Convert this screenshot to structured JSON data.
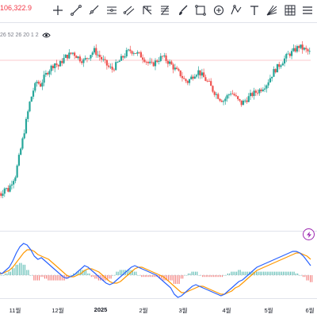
{
  "toolbar": {
    "price_readout": "106,322.9",
    "tools": [
      {
        "icon": "crosshair-icon",
        "glyph": "cross"
      },
      {
        "icon": "trend-line-icon",
        "glyph": "line"
      },
      {
        "icon": "ray-icon",
        "glyph": "ray"
      },
      {
        "icon": "horizontal-lines-icon",
        "glyph": "hlines"
      },
      {
        "icon": "parallel-channel-icon",
        "glyph": "channel"
      },
      {
        "icon": "pitchfork-icon",
        "glyph": "fork"
      },
      {
        "icon": "fib-retracement-icon",
        "glyph": "fib"
      },
      {
        "icon": "brush-icon",
        "glyph": "brush"
      },
      {
        "icon": "rectangle-icon",
        "glyph": "rect"
      },
      {
        "icon": "circle-target-icon",
        "glyph": "circle"
      },
      {
        "icon": "triangle-pattern-icon",
        "glyph": "tri"
      },
      {
        "icon": "text-tool-icon",
        "glyph": "T"
      },
      {
        "icon": "fan-icon",
        "glyph": "fan"
      },
      {
        "icon": "gann-grid-icon",
        "glyph": "grid"
      },
      {
        "icon": "more-tools-icon",
        "glyph": "more"
      }
    ]
  },
  "indicator": {
    "params": "26 52 26 20 1 2"
  },
  "colors": {
    "up": "#26a69a",
    "down": "#ef5350",
    "price_line": "#f23645",
    "macd": "#2962ff",
    "signal": "#ff9800",
    "hist_up": "#26a69a",
    "hist_down": "#ef5350"
  },
  "xaxis": {
    "labels": [
      {
        "text": "11월",
        "bold": false
      },
      {
        "text": "12월",
        "bold": false
      },
      {
        "text": "2025",
        "bold": true
      },
      {
        "text": "2월",
        "bold": false
      },
      {
        "text": "3월",
        "bold": false
      },
      {
        "text": "4월",
        "bold": false
      },
      {
        "text": "5월",
        "bold": false
      },
      {
        "text": "6월",
        "bold": false
      }
    ]
  },
  "chart_data": {
    "type": "candlestick",
    "title": "",
    "last_price": 106322.9,
    "price_series": [
      62,
      60,
      66,
      64,
      72,
      78,
      95,
      112,
      130,
      148,
      160,
      168,
      165,
      172,
      178,
      182,
      186,
      183,
      188,
      192,
      194,
      196,
      193,
      190,
      188,
      191,
      195,
      198,
      194,
      190,
      186,
      182,
      180,
      184,
      188,
      192,
      196,
      198,
      197,
      195,
      193,
      190,
      186,
      184,
      187,
      190,
      192,
      189,
      186,
      182,
      178,
      175,
      170,
      168,
      172,
      176,
      178,
      174,
      170,
      166,
      160,
      156,
      152,
      150,
      154,
      158,
      155,
      150,
      147,
      150,
      153,
      156,
      158,
      160,
      163,
      166,
      172,
      178,
      182,
      186,
      190,
      194,
      196,
      199,
      202,
      200,
      198,
      196
    ],
    "macd": [
      2,
      1,
      3,
      5,
      9,
      14,
      18,
      20,
      19,
      16,
      12,
      10,
      11,
      9,
      7,
      5,
      3,
      1,
      -1,
      -2,
      -1,
      0,
      2,
      4,
      6,
      5,
      3,
      1,
      -1,
      -3,
      -5,
      -6,
      -5,
      -3,
      -1,
      1,
      3,
      5,
      6,
      5,
      4,
      3,
      2,
      1,
      0,
      -2,
      -4,
      -6,
      -8,
      -12,
      -14,
      -13,
      -11,
      -9,
      -7,
      -6,
      -7,
      -8,
      -9,
      -10,
      -11,
      -12,
      -13,
      -12,
      -10,
      -8,
      -6,
      -4,
      -3,
      -1,
      1,
      3,
      5,
      6,
      7,
      8,
      9,
      10,
      11,
      12,
      13,
      14,
      15,
      15,
      14,
      12,
      9,
      6
    ],
    "signal": [
      1,
      1,
      2,
      3,
      5,
      8,
      11,
      14,
      16,
      16,
      15,
      13,
      12,
      11,
      10,
      8,
      6,
      4,
      2,
      0,
      -1,
      -1,
      0,
      1,
      3,
      4,
      4,
      3,
      2,
      0,
      -2,
      -4,
      -5,
      -5,
      -4,
      -2,
      0,
      2,
      4,
      5,
      5,
      4,
      3,
      2,
      1,
      0,
      -1,
      -3,
      -5,
      -7,
      -9,
      -11,
      -11,
      -10,
      -9,
      -8,
      -7,
      -7,
      -8,
      -9,
      -10,
      -11,
      -12,
      -12,
      -11,
      -10,
      -8,
      -7,
      -5,
      -3,
      -1,
      1,
      3,
      4,
      5,
      6,
      7,
      8,
      9,
      10,
      11,
      12,
      13,
      14,
      14,
      13,
      12,
      10
    ],
    "xlabels": [
      "11월",
      "12월",
      "2025",
      "2월",
      "3월",
      "4월",
      "5월",
      "6월"
    ]
  }
}
